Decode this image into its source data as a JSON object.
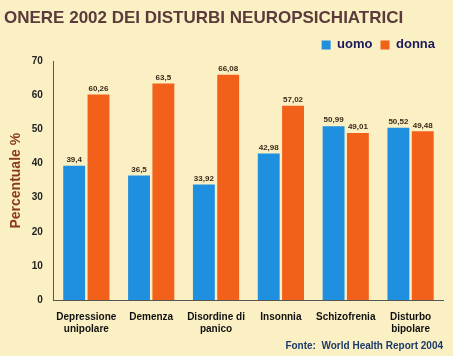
{
  "chart_data": {
    "type": "bar",
    "title": "ONERE 2002 DEI DISTURBI NEUROPSICHIATRICI",
    "y_label": "Percentuale %",
    "annotation": "Fonte:  World Health Report 2004",
    "categories": [
      "Depressione\nunipolare",
      "Demenza",
      "Disordine di\npanico",
      "Insonnia",
      "Schizofrenia",
      "Disturbo\nbipolare"
    ],
    "series": [
      {
        "name": "uomo",
        "color": "#1f8fe0",
        "values": [
          39.4,
          36.5,
          33.92,
          42.98,
          50.99,
          50.52
        ],
        "value_labels": [
          "39,4",
          "36,5",
          "33,92",
          "42,98",
          "50,99",
          "50,52"
        ]
      },
      {
        "name": "donna",
        "color": "#f2601a",
        "values": [
          60.26,
          63.5,
          66.08,
          57.02,
          49.01,
          49.48
        ],
        "value_labels": [
          "60,26",
          "63,5",
          "66,08",
          "57,02",
          "49,01",
          "49,48"
        ]
      }
    ],
    "ylim": [
      0,
      70
    ],
    "yticks": [
      0,
      10,
      20,
      30,
      40,
      50,
      60,
      70
    ],
    "grid": false,
    "legend": "top right",
    "data_labels": true
  }
}
